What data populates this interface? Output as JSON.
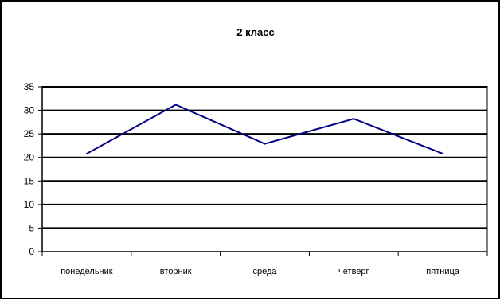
{
  "chart_data": {
    "type": "line",
    "title": "2 класс",
    "xlabel": "",
    "ylabel": "",
    "categories": [
      "понедельник",
      "вторник",
      "среда",
      "четверг",
      "пятница"
    ],
    "series": [
      {
        "values": [
          20.8,
          31.2,
          22.9,
          28.2,
          20.8
        ],
        "color": "#000080"
      }
    ],
    "ylim": [
      0,
      35
    ],
    "yticks": [
      0,
      5,
      10,
      15,
      20,
      25,
      30,
      35
    ],
    "grid": true,
    "legend": "none"
  }
}
